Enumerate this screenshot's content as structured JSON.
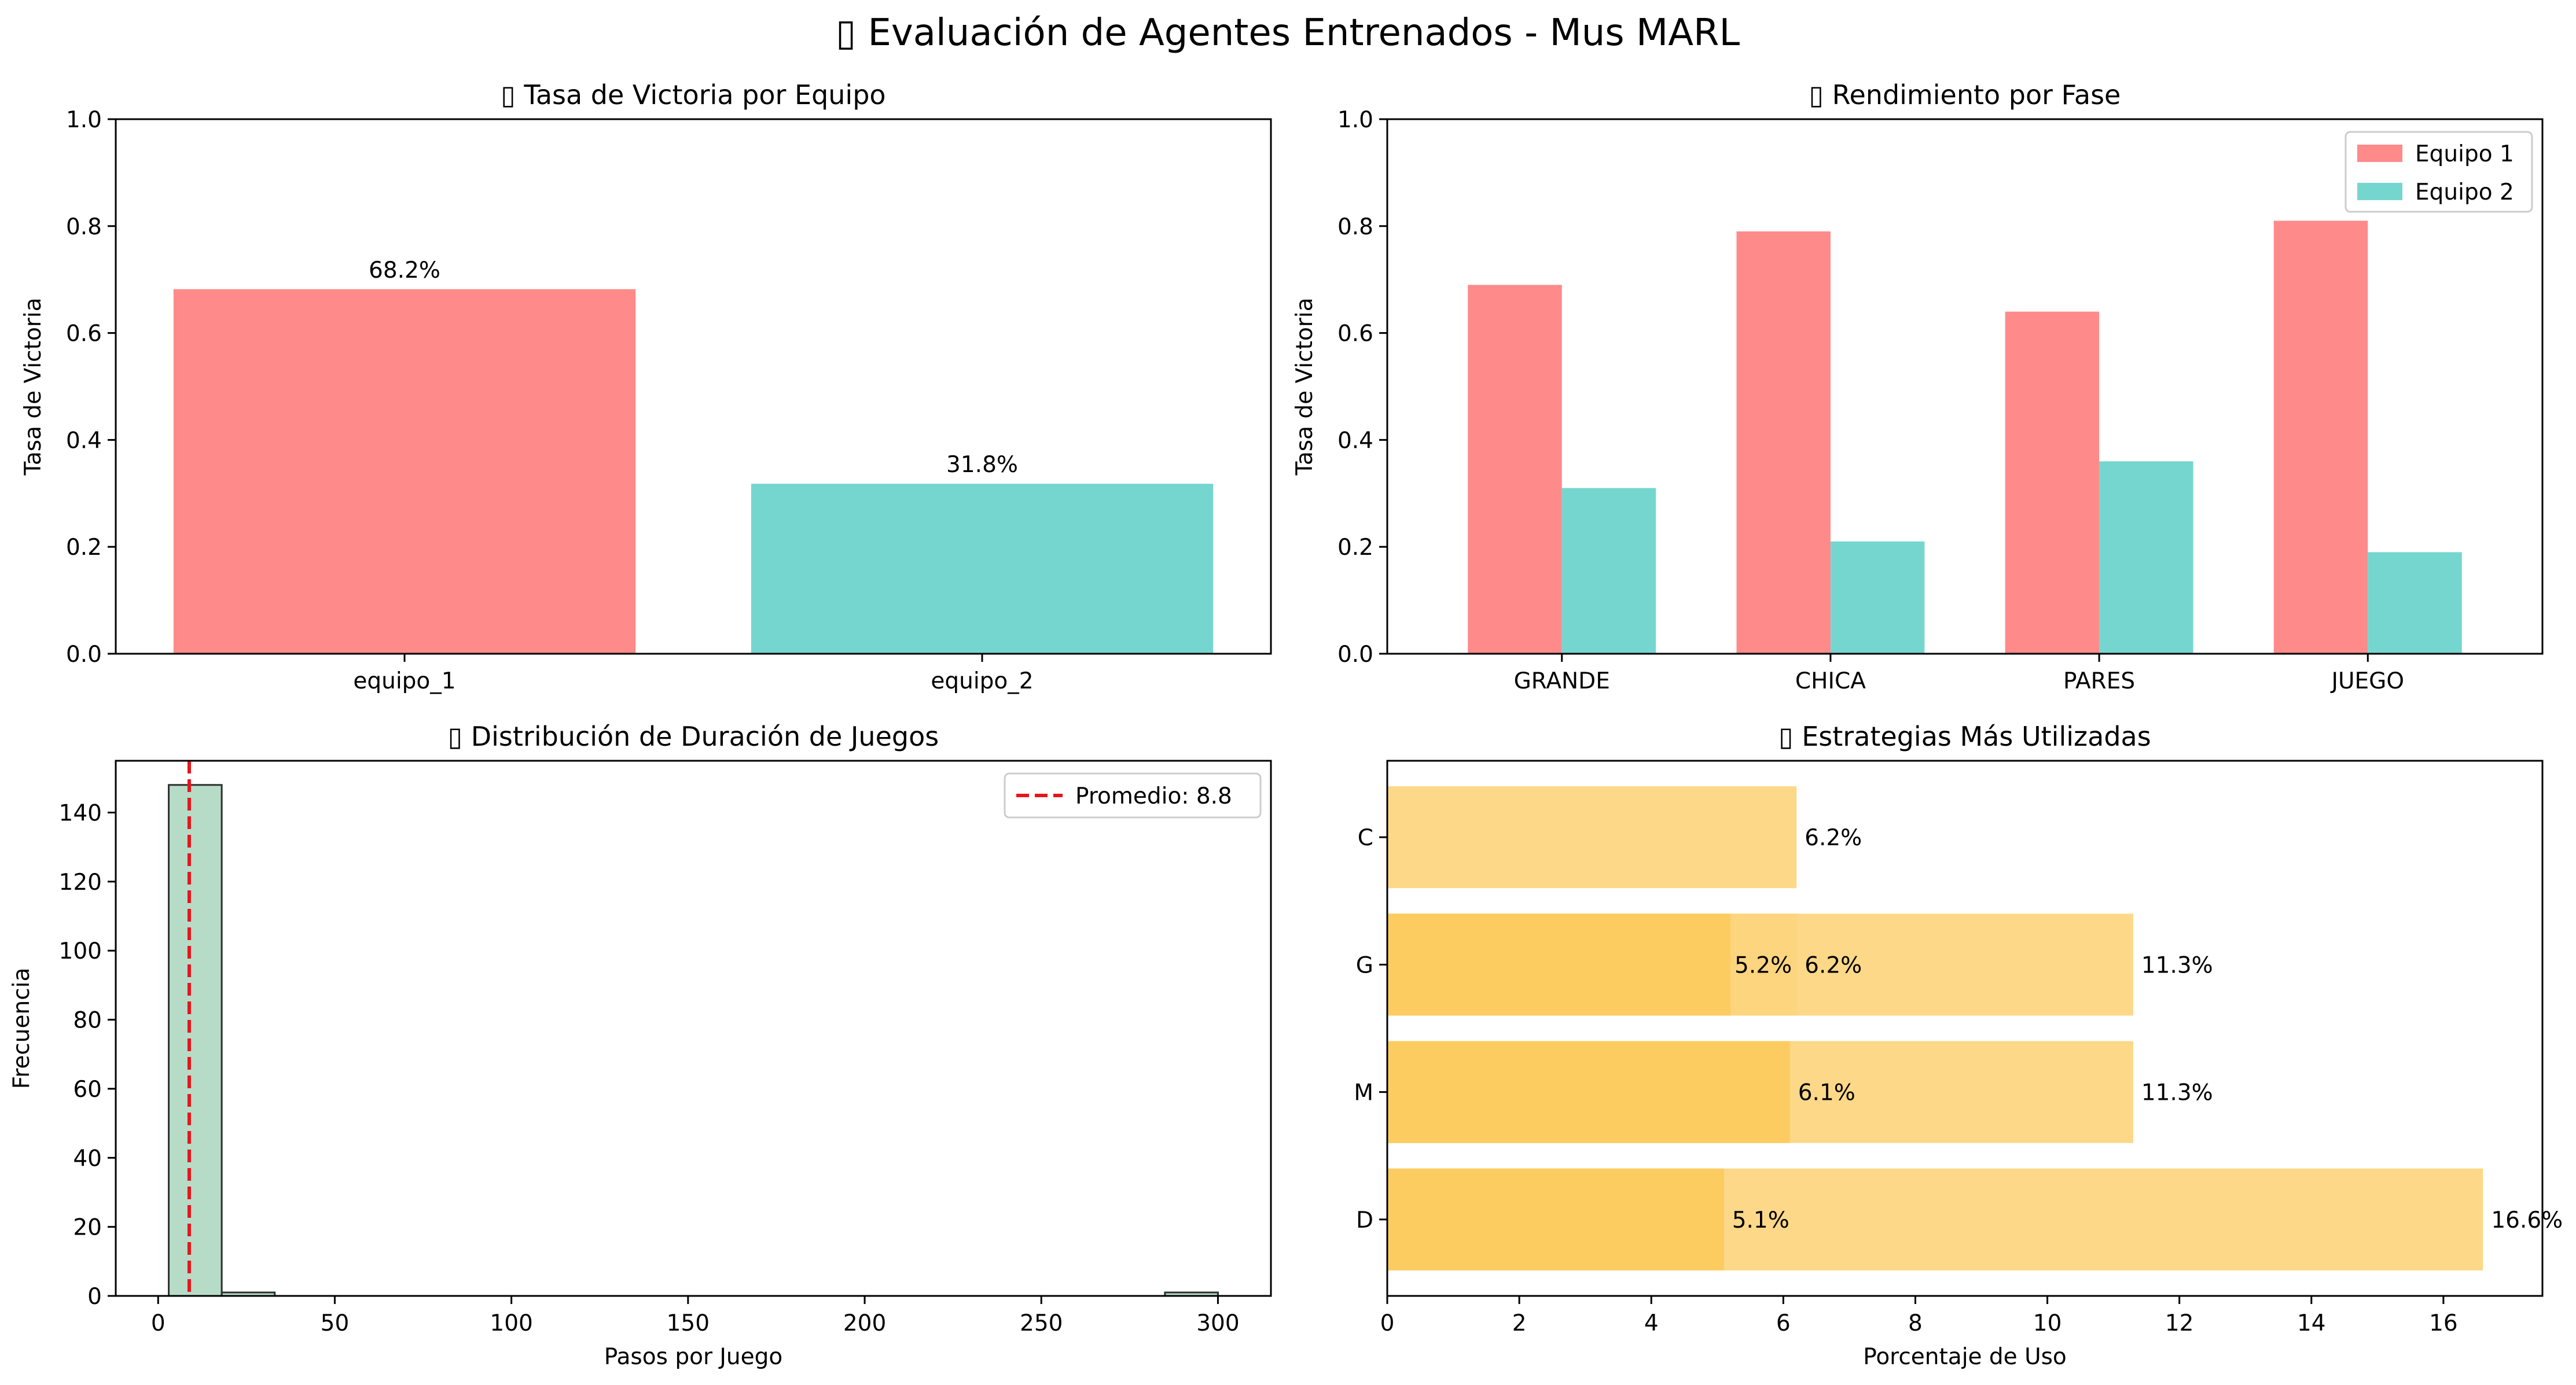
{
  "suptitle": "▯ Evaluación de Agentes Entrenados - Mus MARL",
  "colors": {
    "team1": "#ff8a8a",
    "team2": "#75d6cf",
    "hist": "#b6dcc7",
    "hist_edge": "#2f2f2f",
    "strategy_light": "#fdd57e",
    "strategy_dark": "#fdcb5d",
    "mean_line": "#e8141b"
  },
  "chart_data": [
    {
      "type": "bar",
      "title": "▯ Tasa de Victoria por Equipo",
      "categories": [
        "equipo_1",
        "equipo_2"
      ],
      "values": [
        0.682,
        0.318
      ],
      "labels": [
        "68.2%",
        "31.8%"
      ],
      "ylabel": "Tasa de Victoria",
      "xlabel": "",
      "ylim": [
        0,
        1.0
      ],
      "yticks": [
        "0.0",
        "0.2",
        "0.4",
        "0.6",
        "0.8",
        "1.0"
      ],
      "grid": false
    },
    {
      "type": "bar",
      "title": "▯ Rendimiento por Fase",
      "categories": [
        "GRANDE",
        "CHICA",
        "PARES",
        "JUEGO"
      ],
      "series": [
        {
          "name": "Equipo 1",
          "values": [
            0.69,
            0.79,
            0.64,
            0.81
          ]
        },
        {
          "name": "Equipo 2",
          "values": [
            0.31,
            0.21,
            0.36,
            0.19
          ]
        }
      ],
      "ylabel": "Tasa de Victoria",
      "xlabel": "",
      "ylim": [
        0,
        1.0
      ],
      "yticks": [
        "0.0",
        "0.2",
        "0.4",
        "0.6",
        "0.8",
        "1.0"
      ],
      "legend": "top-right",
      "grid": false
    },
    {
      "type": "bar",
      "title": "▯ Distribución de Duración de Juegos",
      "bins": [
        {
          "start": 3,
          "end": 18,
          "count": 148
        },
        {
          "start": 18,
          "end": 33,
          "count": 1
        },
        {
          "start": 285,
          "end": 300,
          "count": 1
        }
      ],
      "mean": 8.8,
      "mean_label": "Promedio: 8.8",
      "xlabel": "Pasos por Juego",
      "ylabel": "Frecuencia",
      "xlim": [
        -12,
        315
      ],
      "ylim": [
        0,
        155
      ],
      "xticks": [
        "0",
        "50",
        "100",
        "150",
        "200",
        "250",
        "300"
      ],
      "yticks": [
        "0",
        "20",
        "40",
        "60",
        "80",
        "100",
        "120",
        "140"
      ],
      "legend": "top-right",
      "grid": false
    },
    {
      "type": "bar",
      "orientation": "horizontal",
      "title": "▯ Estrategias Más Utilizadas",
      "categories": [
        "D",
        "M",
        "G",
        "C"
      ],
      "bars": [
        {
          "category": "D",
          "value": 16.6,
          "label": "16.6%",
          "tone": "light"
        },
        {
          "category": "D",
          "value": 5.1,
          "label": "5.1%",
          "tone": "dark"
        },
        {
          "category": "M",
          "value": 11.3,
          "label": "11.3%",
          "tone": "light"
        },
        {
          "category": "M",
          "value": 6.1,
          "label": "6.1%",
          "tone": "dark"
        },
        {
          "category": "G",
          "value": 11.3,
          "label": "11.3%",
          "tone": "light"
        },
        {
          "category": "G",
          "value": 6.2,
          "label": "6.2%",
          "tone": "light"
        },
        {
          "category": "G",
          "value": 5.2,
          "label": "5.2%",
          "tone": "dark"
        },
        {
          "category": "C",
          "value": 6.2,
          "label": "6.2%",
          "tone": "light"
        }
      ],
      "xlabel": "Porcentaje de Uso",
      "ylabel": "",
      "xlim": [
        0,
        17.5
      ],
      "xticks": [
        "0",
        "2",
        "4",
        "6",
        "8",
        "10",
        "12",
        "14",
        "16"
      ],
      "grid": false
    }
  ]
}
